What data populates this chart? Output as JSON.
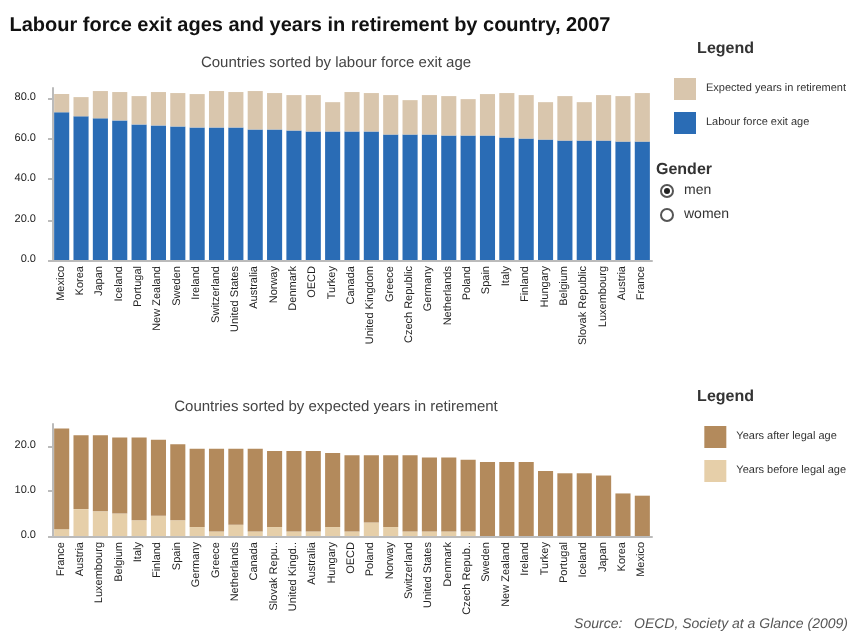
{
  "chart_data": [
    {
      "type": "bar",
      "title": "Labour force exit ages and years in retirement by country, 2007",
      "subtitle": "Countries sorted by labour force exit age",
      "legend_title": "Legend",
      "annotations": [
        "Gender",
        "men",
        "women"
      ],
      "categories": [
        "Mexico",
        "Korea",
        "Japan",
        "Iceland",
        "Portugal",
        "New Zealand",
        "Sweden",
        "Ireland",
        "Switzerland",
        "United States",
        "Australia",
        "Norway",
        "Denmark",
        "OECD",
        "Turkey",
        "Canada",
        "United Kingdom",
        "Greece",
        "Czech Republic",
        "Germany",
        "Netherlands",
        "Poland",
        "Spain",
        "Italy",
        "Finland",
        "Hungary",
        "Belgium",
        "Slovak Republic",
        "Luxembourg",
        "Austria",
        "France"
      ],
      "stacked": true,
      "legend": "right",
      "grid": false,
      "ylim": [
        0,
        85
      ],
      "yticks": [
        {
          "value": 0,
          "label": "0.0"
        },
        {
          "value": 20,
          "label": "20.0"
        },
        {
          "value": 40,
          "label": "40.0"
        },
        {
          "value": 60,
          "label": "60.0"
        },
        {
          "value": 80,
          "label": "80.0"
        }
      ],
      "series": [
        {
          "name": "Labour force exit age",
          "color": "#2a6cb5",
          "values": [
            73,
            71,
            70,
            69,
            67,
            66.5,
            66,
            65.5,
            65.5,
            65.5,
            64.5,
            64.5,
            64,
            63.5,
            63.5,
            63.5,
            63.5,
            62,
            62,
            62,
            61.5,
            61.5,
            61.5,
            60.5,
            60,
            59.5,
            59,
            59,
            59,
            58.5,
            58.5
          ]
        },
        {
          "name": "Expected years in retirement",
          "color": "#d9c6ad",
          "values": [
            9,
            9.5,
            13.5,
            14,
            14,
            16.5,
            16.5,
            16.5,
            18,
            17.5,
            19,
            18,
            17.5,
            18,
            14.5,
            19.5,
            19,
            19.5,
            17,
            19.5,
            19.5,
            18,
            20.5,
            22,
            21.5,
            18.5,
            22,
            19,
            22.5,
            22.5,
            24
          ]
        }
      ]
    },
    {
      "type": "bar",
      "title": "Countries sorted by expected years in retirement",
      "legend_title": "Legend",
      "annotations": [
        "Source:   OECD, Society at a Glance (2009)"
      ],
      "categories": [
        "France",
        "Austria",
        "Luxembourg",
        "Belgium",
        "Italy",
        "Finland",
        "Spain",
        "Germany",
        "Greece",
        "Netherlands",
        "Canada",
        "Slovak Repu..",
        "United Kingd..",
        "Australia",
        "Hungary",
        "OECD",
        "Poland",
        "Norway",
        "Switzerland",
        "United States",
        "Denmark",
        "Czech Repub..",
        "Sweden",
        "New Zealand",
        "Ireland",
        "Turkey",
        "Portugal",
        "Iceland",
        "Japan",
        "Korea",
        "Mexico"
      ],
      "stacked": true,
      "legend": "right",
      "grid": false,
      "ylim": [
        0,
        25
      ],
      "yticks": [
        {
          "value": 0,
          "label": "0.0"
        },
        {
          "value": 10,
          "label": "10.0"
        },
        {
          "value": 20,
          "label": "20.0"
        }
      ],
      "series": [
        {
          "name": "Years before legal age",
          "color": "#e6cfa9",
          "values": [
            1.5,
            6,
            5.5,
            5,
            3.5,
            4.5,
            3.5,
            2,
            1,
            2.5,
            1,
            2,
            1,
            1,
            2,
            1,
            3,
            2,
            1,
            1,
            1,
            1,
            0,
            0,
            0,
            0,
            0,
            0,
            0,
            0,
            0
          ]
        },
        {
          "name": "Years after legal age",
          "color": "#b38a5c",
          "values": [
            22.5,
            16.5,
            17,
            17,
            18.5,
            17,
            17,
            17.5,
            18.5,
            17,
            18.5,
            17,
            18,
            18,
            16.5,
            17,
            15,
            16,
            17,
            16.5,
            16.5,
            16,
            16.5,
            16.5,
            16.5,
            14.5,
            14,
            14,
            13.5,
            9.5,
            9
          ]
        }
      ]
    }
  ]
}
